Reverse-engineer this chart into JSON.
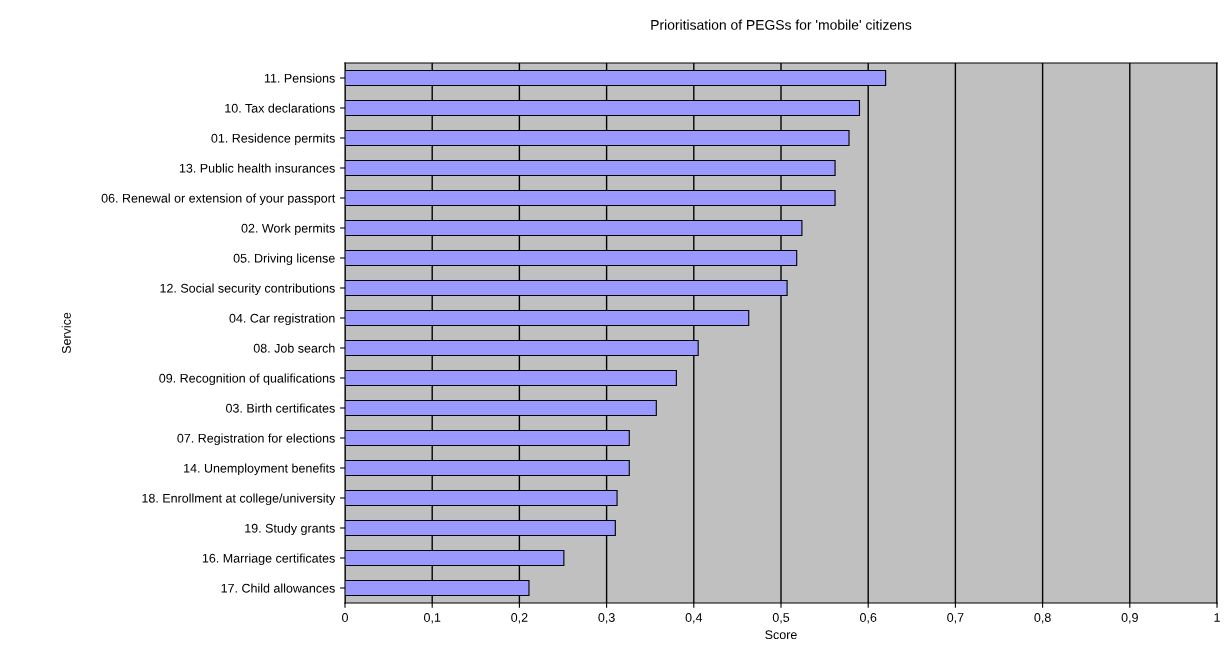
{
  "chart_data": {
    "type": "bar",
    "orientation": "horizontal",
    "title": "Prioritisation of PEGSs for 'mobile' citizens",
    "xlabel": "Score",
    "ylabel": "Service",
    "categories": [
      "11. Pensions",
      "10. Tax declarations",
      "01. Residence permits",
      "13. Public health insurances",
      "06. Renewal or extension of your passport",
      "02. Work permits",
      "05. Driving license",
      "12. Social security contributions",
      "04. Car registration",
      "08. Job search",
      "09. Recognition of qualifications",
      "03. Birth certificates",
      "07. Registration for elections",
      "14. Unemployment benefits",
      "18. Enrollment at college/university",
      "19. Study grants",
      "16. Marriage certificates",
      "17. Child allowances"
    ],
    "values": [
      0.62,
      0.59,
      0.578,
      0.562,
      0.562,
      0.524,
      0.518,
      0.507,
      0.463,
      0.405,
      0.38,
      0.357,
      0.326,
      0.326,
      0.312,
      0.31,
      0.251,
      0.211
    ],
    "color": "#9999ff",
    "xlim": [
      0,
      1
    ],
    "xticks": [
      0,
      {
        "value": 0.1,
        "label": "0,1"
      },
      {
        "value": 0.2,
        "label": "0,2"
      },
      {
        "value": 0.3,
        "label": "0,3"
      },
      {
        "value": 0.4,
        "label": "0,4"
      },
      {
        "value": 0.5,
        "label": "0,5"
      },
      {
        "value": 0.6,
        "label": "0,6"
      },
      {
        "value": 0.7,
        "label": "0,7"
      },
      {
        "value": 0.8,
        "label": "0,8"
      },
      {
        "value": 0.9,
        "label": "0,9"
      },
      1
    ],
    "grid": "x"
  }
}
